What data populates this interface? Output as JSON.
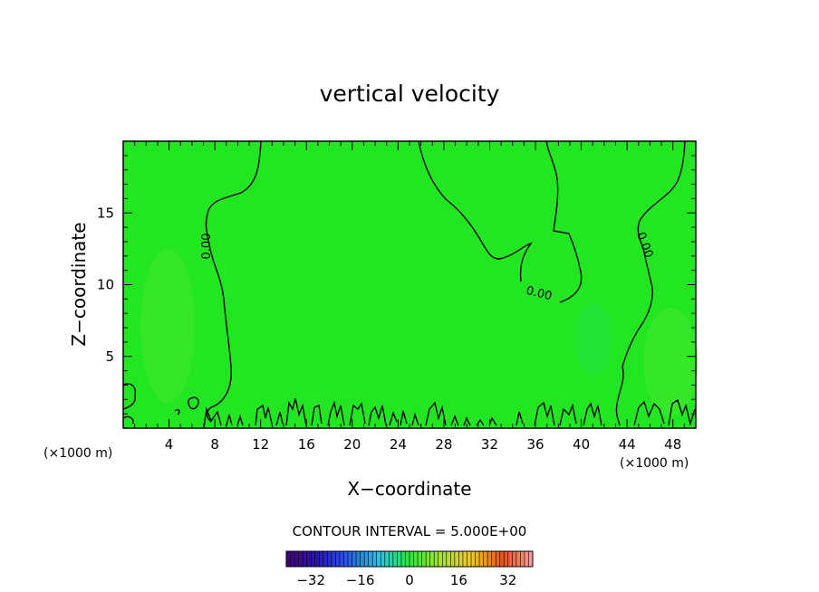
{
  "chart_data": {
    "type": "contour",
    "title": "vertical velocity",
    "xlabel": "X−coordinate",
    "ylabel": "Z−coordinate",
    "x_unit_left": "(×1000 m)",
    "x_unit_right": "(×1000 m)",
    "xlim": [
      0,
      50
    ],
    "ylim": [
      0,
      20
    ],
    "x_ticks": [
      4,
      8,
      12,
      16,
      20,
      24,
      28,
      32,
      36,
      40,
      44,
      48
    ],
    "y_ticks": [
      5,
      10,
      15
    ],
    "x_tick_labels": [
      "4",
      "8",
      "12",
      "16",
      "20",
      "24",
      "28",
      "32",
      "36",
      "40",
      "44",
      "48"
    ],
    "y_tick_labels": [
      "5",
      "10",
      "15"
    ],
    "contour_labels": [
      "0.00",
      "0.00",
      "0.00"
    ],
    "contour_interval_text": "CONTOUR INTERVAL = 5.000E+00",
    "colorbar": {
      "range": [
        -40,
        40
      ],
      "tick_values": [
        -32,
        -16,
        0,
        16,
        32
      ],
      "tick_labels": [
        "−32",
        "−16",
        "0",
        "16",
        "32"
      ]
    },
    "background_color": "#22e622",
    "colors": {
      "field": "#22e622",
      "contour": "#000000"
    }
  }
}
